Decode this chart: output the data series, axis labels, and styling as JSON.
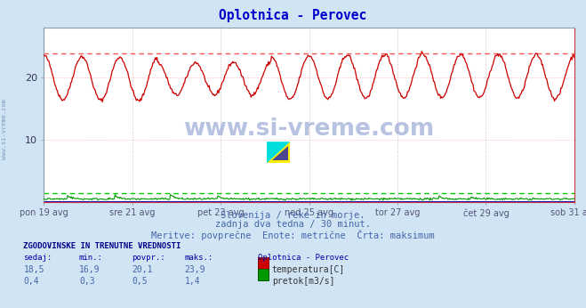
{
  "title": "Oplotnica - Perovec",
  "title_color": "#0000cc",
  "bg_color": "#d0e4f4",
  "plot_bg_color": "#ffffff",
  "grid_color_h": "#ffaaaa",
  "grid_color_v": "#ddcccc",
  "x_labels": [
    "pon 19 avg",
    "sre 21 avg",
    "pet 23 avg",
    "ned 25 avg",
    "tor 27 avg",
    "čet 29 avg",
    "sob 31 avg"
  ],
  "ylim": [
    0,
    28
  ],
  "y_ticks": [
    10,
    20
  ],
  "temp_color": "#cc0000",
  "temp_max_color": "#ff5555",
  "pretok_color": "#009900",
  "pretok_max_color": "#00cc00",
  "visina_color": "#0000bb",
  "temp_max": 23.9,
  "temp_min": 16.9,
  "temp_avg": 20.1,
  "temp_sedaj": 18.5,
  "pretok_max": 1.4,
  "pretok_min": 0.3,
  "pretok_avg": 0.5,
  "pretok_sedaj": 0.4,
  "subtitle1": "Slovenija / reke in morje.",
  "subtitle2": "zadnja dva tedna / 30 minut.",
  "subtitle3": "Meritve: povprečne  Enote: metrične  Črta: maksimum",
  "table_title": "ZGODOVINSKE IN TRENUTNE VREDNOSTI",
  "col_headers": [
    "sedaj:",
    "min.:",
    "povpr.:",
    "maks.:"
  ],
  "row1_vals": [
    "18,5",
    "16,9",
    "20,1",
    "23,9"
  ],
  "row2_vals": [
    "0,4",
    "0,3",
    "0,5",
    "1,4"
  ],
  "legend_title": "Oplotnica - Perovec",
  "legend_items": [
    "temperatura[C]",
    "pretok[m3/s]"
  ],
  "legend_colors": [
    "#cc0000",
    "#009900"
  ],
  "watermark": "www.si-vreme.com",
  "left_label": "www.si-vreme.com",
  "n_points": 672,
  "days": 14
}
